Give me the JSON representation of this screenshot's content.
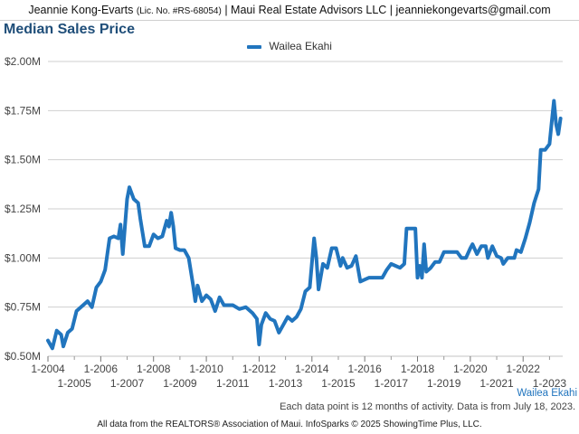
{
  "header": {
    "agent_name": "Jeannie Kong-Evarts",
    "license": "(Lic. No. #RS-68054)",
    "company_contact": "| Maui Real Estate Advisors LLC | jeanniekongevarts@gmail.com"
  },
  "footer": {
    "note": "Each data point is 12 months of activity. Data is from July 18, 2023.",
    "source": "All data from the REALTORS® Association of Maui. InfoSparks © 2025 ShowingTime Plus, LLC."
  },
  "colors": {
    "series": "#2175be",
    "grid": "#cfcfcf",
    "title": "#1f4e79"
  },
  "chart_data": {
    "type": "line",
    "title": "Median Sales Price",
    "xlabel": "",
    "ylabel": "",
    "grid": true,
    "legend_position": "top-center",
    "xlim": [
      "2004-01",
      "2023-07"
    ],
    "ylim": [
      500000,
      2000000
    ],
    "y_ticks": [
      "$0.50M",
      "$0.75M",
      "$1.00M",
      "$1.25M",
      "$1.50M",
      "$1.75M",
      "$2.00M"
    ],
    "x_ticks_upper": [
      "1-2004",
      "1-2006",
      "1-2008",
      "1-2010",
      "1-2012",
      "1-2014",
      "1-2016",
      "1-2018",
      "1-2020",
      "1-2022"
    ],
    "x_ticks_lower": [
      "1-2005",
      "1-2007",
      "1-2009",
      "1-2011",
      "1-2013",
      "1-2015",
      "1-2017",
      "1-2019",
      "1-2021",
      "1-2023"
    ],
    "series": [
      {
        "name": "Wailea Ekahi",
        "points": [
          [
            "2004-01",
            580000
          ],
          [
            "2004-03",
            540000
          ],
          [
            "2004-05",
            630000
          ],
          [
            "2004-07",
            610000
          ],
          [
            "2004-08",
            550000
          ],
          [
            "2004-10",
            620000
          ],
          [
            "2004-12",
            640000
          ],
          [
            "2005-02",
            730000
          ],
          [
            "2005-05",
            760000
          ],
          [
            "2005-07",
            780000
          ],
          [
            "2005-09",
            750000
          ],
          [
            "2005-11",
            850000
          ],
          [
            "2006-01",
            880000
          ],
          [
            "2006-03",
            940000
          ],
          [
            "2006-05",
            1100000
          ],
          [
            "2006-07",
            1110000
          ],
          [
            "2006-09",
            1100000
          ],
          [
            "2006-10",
            1170000
          ],
          [
            "2006-11",
            1020000
          ],
          [
            "2007-01",
            1300000
          ],
          [
            "2007-02",
            1360000
          ],
          [
            "2007-04",
            1300000
          ],
          [
            "2007-06",
            1280000
          ],
          [
            "2007-07",
            1200000
          ],
          [
            "2007-09",
            1060000
          ],
          [
            "2007-11",
            1060000
          ],
          [
            "2008-01",
            1120000
          ],
          [
            "2008-03",
            1100000
          ],
          [
            "2008-05",
            1110000
          ],
          [
            "2008-07",
            1190000
          ],
          [
            "2008-08",
            1160000
          ],
          [
            "2008-09",
            1230000
          ],
          [
            "2008-10",
            1160000
          ],
          [
            "2008-11",
            1050000
          ],
          [
            "2009-01",
            1040000
          ],
          [
            "2009-03",
            1040000
          ],
          [
            "2009-05",
            1000000
          ],
          [
            "2009-07",
            860000
          ],
          [
            "2009-08",
            780000
          ],
          [
            "2009-09",
            860000
          ],
          [
            "2009-11",
            780000
          ],
          [
            "2010-01",
            810000
          ],
          [
            "2010-03",
            790000
          ],
          [
            "2010-05",
            730000
          ],
          [
            "2010-07",
            800000
          ],
          [
            "2010-09",
            760000
          ],
          [
            "2011-01",
            760000
          ],
          [
            "2011-04",
            740000
          ],
          [
            "2011-07",
            750000
          ],
          [
            "2011-10",
            720000
          ],
          [
            "2011-12",
            690000
          ],
          [
            "2012-01",
            560000
          ],
          [
            "2012-02",
            660000
          ],
          [
            "2012-04",
            720000
          ],
          [
            "2012-06",
            690000
          ],
          [
            "2012-08",
            680000
          ],
          [
            "2012-10",
            620000
          ],
          [
            "2012-12",
            660000
          ],
          [
            "2013-02",
            700000
          ],
          [
            "2013-04",
            680000
          ],
          [
            "2013-06",
            700000
          ],
          [
            "2013-08",
            740000
          ],
          [
            "2013-10",
            830000
          ],
          [
            "2013-12",
            850000
          ],
          [
            "2014-02",
            1100000
          ],
          [
            "2014-03",
            1000000
          ],
          [
            "2014-04",
            840000
          ],
          [
            "2014-06",
            970000
          ],
          [
            "2014-08",
            950000
          ],
          [
            "2014-10",
            1050000
          ],
          [
            "2014-12",
            1050000
          ],
          [
            "2015-02",
            960000
          ],
          [
            "2015-03",
            1000000
          ],
          [
            "2015-05",
            950000
          ],
          [
            "2015-07",
            960000
          ],
          [
            "2015-09",
            1010000
          ],
          [
            "2015-11",
            880000
          ],
          [
            "2016-01",
            890000
          ],
          [
            "2016-03",
            900000
          ],
          [
            "2016-05",
            900000
          ],
          [
            "2016-07",
            900000
          ],
          [
            "2016-09",
            900000
          ],
          [
            "2016-11",
            940000
          ],
          [
            "2017-01",
            970000
          ],
          [
            "2017-03",
            960000
          ],
          [
            "2017-05",
            950000
          ],
          [
            "2017-07",
            970000
          ],
          [
            "2017-08",
            1150000
          ],
          [
            "2017-10",
            1150000
          ],
          [
            "2017-12",
            1150000
          ],
          [
            "2018-01",
            900000
          ],
          [
            "2018-02",
            960000
          ],
          [
            "2018-03",
            900000
          ],
          [
            "2018-04",
            1070000
          ],
          [
            "2018-05",
            930000
          ],
          [
            "2018-07",
            950000
          ],
          [
            "2018-09",
            980000
          ],
          [
            "2018-11",
            980000
          ],
          [
            "2019-01",
            1030000
          ],
          [
            "2019-04",
            1030000
          ],
          [
            "2019-07",
            1030000
          ],
          [
            "2019-09",
            1000000
          ],
          [
            "2019-11",
            1000000
          ],
          [
            "2020-01",
            1050000
          ],
          [
            "2020-02",
            1070000
          ],
          [
            "2020-04",
            1020000
          ],
          [
            "2020-06",
            1060000
          ],
          [
            "2020-08",
            1060000
          ],
          [
            "2020-09",
            1000000
          ],
          [
            "2020-11",
            1060000
          ],
          [
            "2021-01",
            1010000
          ],
          [
            "2021-03",
            1000000
          ],
          [
            "2021-04",
            970000
          ],
          [
            "2021-06",
            1000000
          ],
          [
            "2021-09",
            1000000
          ],
          [
            "2021-10",
            1040000
          ],
          [
            "2021-12",
            1030000
          ],
          [
            "2022-02",
            1100000
          ],
          [
            "2022-04",
            1180000
          ],
          [
            "2022-06",
            1280000
          ],
          [
            "2022-08",
            1350000
          ],
          [
            "2022-09",
            1550000
          ],
          [
            "2022-11",
            1550000
          ],
          [
            "2023-01",
            1580000
          ],
          [
            "2023-02",
            1690000
          ],
          [
            "2023-03",
            1800000
          ],
          [
            "2023-04",
            1680000
          ],
          [
            "2023-05",
            1630000
          ],
          [
            "2023-06",
            1710000
          ]
        ]
      }
    ]
  }
}
